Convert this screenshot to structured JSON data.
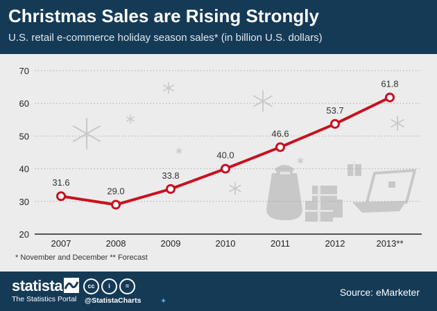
{
  "title": "Christmas Sales are Rising Strongly",
  "subtitle": "U.S. retail e-commerce holiday season sales* (in billion U.S. dollars)",
  "footnote": "* November and December ** Forecast",
  "footer": {
    "brand": "statista",
    "tagline": "The Statistics Portal",
    "license_icons": [
      "cc",
      "i",
      "="
    ],
    "handle": "@StatistaCharts",
    "twitter_icon": "twitter-bird-icon",
    "source": "Source: eMarketer"
  },
  "colors": {
    "header": "#153a56",
    "background": "#ececec",
    "line": "#c8101e",
    "point_fill": "#ffffff",
    "decor": "#c8c8c8",
    "grid": "#aaaaaa"
  },
  "decor_icons": [
    "snowflake-icon",
    "gift-sack-icon",
    "gift-boxes-icon",
    "laptop-icon",
    "small-gift-icon"
  ],
  "chart_data": {
    "type": "line",
    "categories": [
      "2007",
      "2008",
      "2009",
      "2010",
      "2011",
      "2012",
      "2013**"
    ],
    "values": [
      31.6,
      29.0,
      33.8,
      40.0,
      46.6,
      53.7,
      61.8
    ],
    "data_labels": [
      "31.6",
      "29.0",
      "33.8",
      "40.0",
      "46.6",
      "53.7",
      "61.8"
    ],
    "y_ticks": [
      "20",
      "30",
      "40",
      "50",
      "60",
      "70"
    ],
    "ylim": [
      20,
      70
    ],
    "xlabel": "",
    "ylabel": "",
    "grid": true,
    "legend": "none"
  }
}
